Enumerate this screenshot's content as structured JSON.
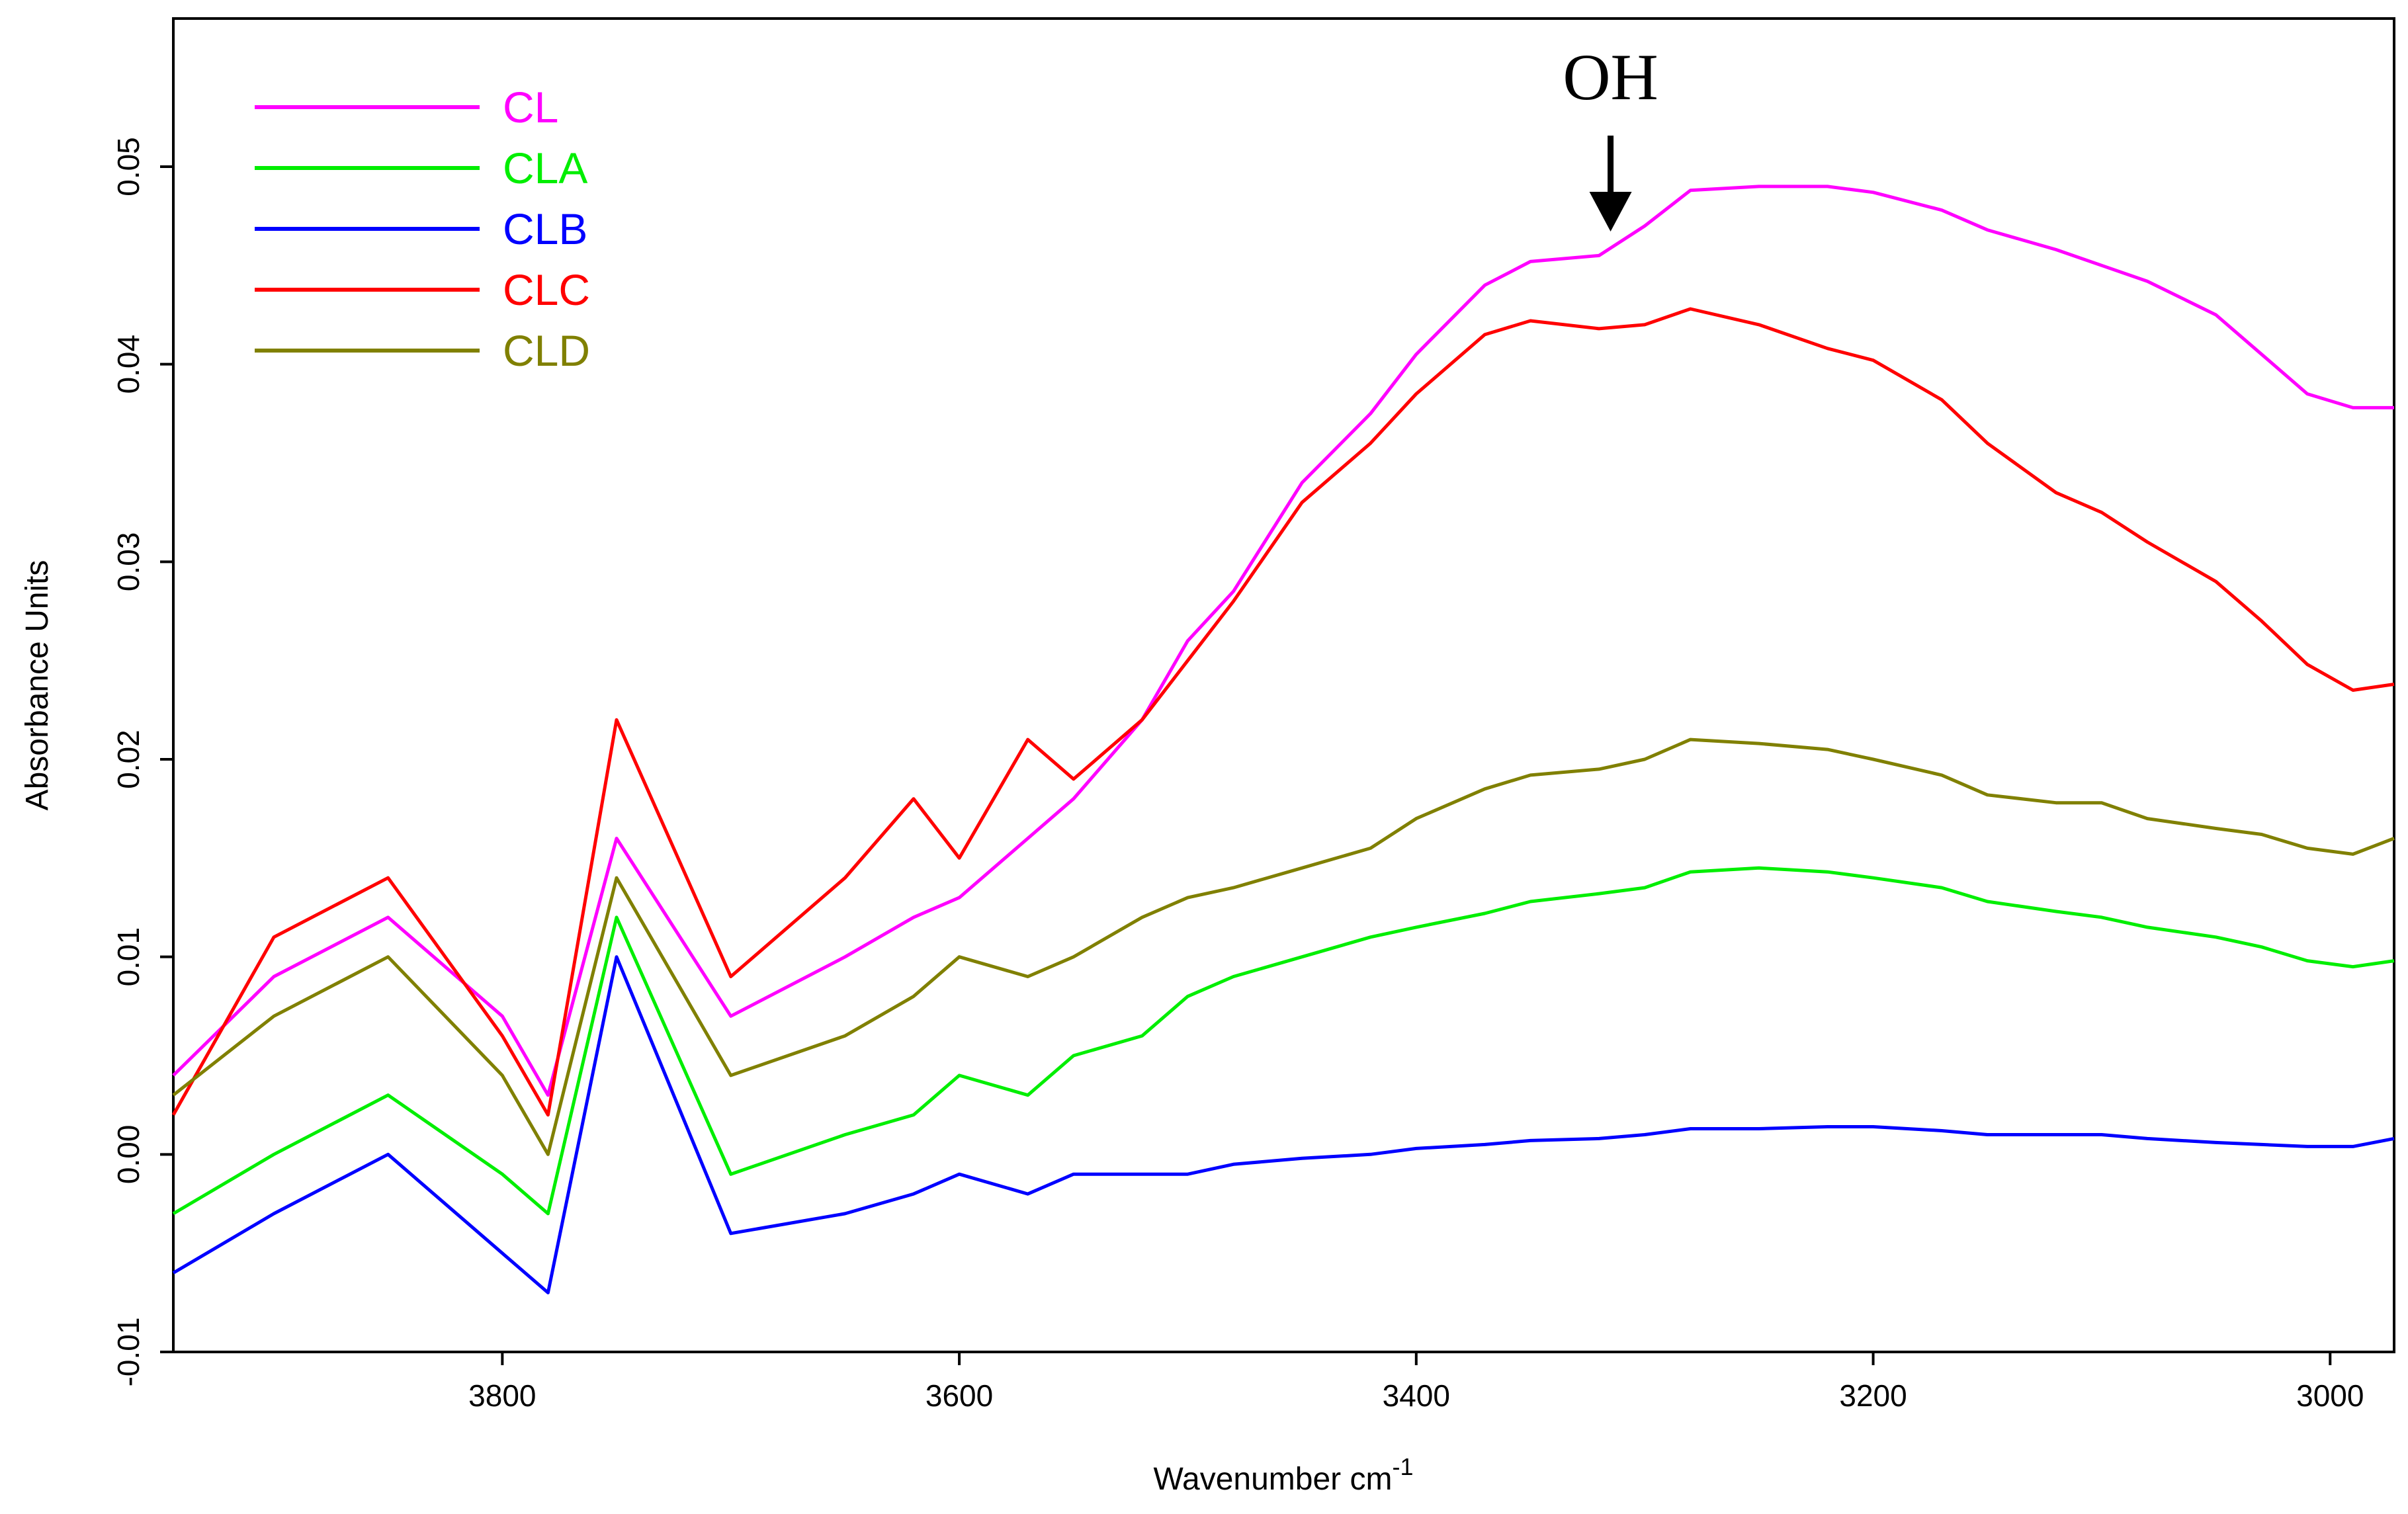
{
  "chart_data": {
    "type": "line",
    "title": "",
    "xlabel": "Wavenumber cm",
    "xlabel_superscript": "-1",
    "ylabel": "Absorbance Units",
    "xlim": [
      3944,
      2972
    ],
    "ylim": [
      -0.01,
      0.0575
    ],
    "x_reversed": true,
    "x_ticks": [
      "3800",
      "3600",
      "3400",
      "3200",
      "3000"
    ],
    "x_tick_values": [
      3800,
      3600,
      3400,
      3200,
      3000
    ],
    "y_ticks": [
      "-0.01",
      "0.00",
      "0.01",
      "0.02",
      "0.03",
      "0.04",
      "0.05"
    ],
    "y_tick_values": [
      -0.01,
      0.0,
      0.01,
      0.02,
      0.03,
      0.04,
      0.05
    ],
    "grid": false,
    "legend_position": "top-left",
    "annotations": [
      {
        "text": "OH",
        "x": 3330,
        "arrow": true
      }
    ],
    "series": [
      {
        "name": "CL",
        "color": "#ff00ff",
        "points": [
          [
            3944,
            0.004
          ],
          [
            3900,
            0.009
          ],
          [
            3850,
            0.012
          ],
          [
            3800,
            0.007
          ],
          [
            3780,
            0.003
          ],
          [
            3750,
            0.016
          ],
          [
            3700,
            0.007
          ],
          [
            3650,
            0.01
          ],
          [
            3620,
            0.012
          ],
          [
            3600,
            0.013
          ],
          [
            3570,
            0.016
          ],
          [
            3550,
            0.018
          ],
          [
            3520,
            0.022
          ],
          [
            3500,
            0.026
          ],
          [
            3480,
            0.0285
          ],
          [
            3450,
            0.034
          ],
          [
            3420,
            0.0375
          ],
          [
            3400,
            0.0405
          ],
          [
            3370,
            0.044
          ],
          [
            3350,
            0.0452
          ],
          [
            3320,
            0.0455
          ],
          [
            3300,
            0.047
          ],
          [
            3280,
            0.0488
          ],
          [
            3250,
            0.049
          ],
          [
            3220,
            0.049
          ],
          [
            3200,
            0.0487
          ],
          [
            3170,
            0.0478
          ],
          [
            3150,
            0.0468
          ],
          [
            3120,
            0.0458
          ],
          [
            3100,
            0.045
          ],
          [
            3080,
            0.0442
          ],
          [
            3050,
            0.0425
          ],
          [
            3030,
            0.0405
          ],
          [
            3010,
            0.0385
          ],
          [
            2990,
            0.0378
          ],
          [
            2972,
            0.0378
          ]
        ]
      },
      {
        "name": "CLA",
        "color": "#00ee00",
        "points": [
          [
            3944,
            -0.003
          ],
          [
            3900,
            0.0
          ],
          [
            3850,
            0.003
          ],
          [
            3800,
            -0.001
          ],
          [
            3780,
            -0.003
          ],
          [
            3750,
            0.012
          ],
          [
            3700,
            -0.001
          ],
          [
            3650,
            0.001
          ],
          [
            3620,
            0.002
          ],
          [
            3600,
            0.004
          ],
          [
            3570,
            0.003
          ],
          [
            3550,
            0.005
          ],
          [
            3520,
            0.006
          ],
          [
            3500,
            0.008
          ],
          [
            3480,
            0.009
          ],
          [
            3450,
            0.01
          ],
          [
            3420,
            0.011
          ],
          [
            3400,
            0.0115
          ],
          [
            3370,
            0.0122
          ],
          [
            3350,
            0.0128
          ],
          [
            3320,
            0.0132
          ],
          [
            3300,
            0.0135
          ],
          [
            3280,
            0.0143
          ],
          [
            3250,
            0.0145
          ],
          [
            3220,
            0.0143
          ],
          [
            3200,
            0.014
          ],
          [
            3170,
            0.0135
          ],
          [
            3150,
            0.0128
          ],
          [
            3120,
            0.0123
          ],
          [
            3100,
            0.012
          ],
          [
            3080,
            0.0115
          ],
          [
            3050,
            0.011
          ],
          [
            3030,
            0.0105
          ],
          [
            3010,
            0.0098
          ],
          [
            2990,
            0.0095
          ],
          [
            2972,
            0.0098
          ]
        ]
      },
      {
        "name": "CLB",
        "color": "#0000ff",
        "points": [
          [
            3944,
            -0.006
          ],
          [
            3900,
            -0.003
          ],
          [
            3850,
            0.0
          ],
          [
            3800,
            -0.005
          ],
          [
            3780,
            -0.007
          ],
          [
            3750,
            0.01
          ],
          [
            3700,
            -0.004
          ],
          [
            3650,
            -0.003
          ],
          [
            3620,
            -0.002
          ],
          [
            3600,
            -0.001
          ],
          [
            3570,
            -0.002
          ],
          [
            3550,
            -0.001
          ],
          [
            3520,
            -0.001
          ],
          [
            3500,
            -0.001
          ],
          [
            3480,
            -0.0005
          ],
          [
            3450,
            -0.0002
          ],
          [
            3420,
            0.0
          ],
          [
            3400,
            0.0003
          ],
          [
            3370,
            0.0005
          ],
          [
            3350,
            0.0007
          ],
          [
            3320,
            0.0008
          ],
          [
            3300,
            0.001
          ],
          [
            3280,
            0.0013
          ],
          [
            3250,
            0.0013
          ],
          [
            3220,
            0.0014
          ],
          [
            3200,
            0.0014
          ],
          [
            3170,
            0.0012
          ],
          [
            3150,
            0.001
          ],
          [
            3120,
            0.001
          ],
          [
            3100,
            0.001
          ],
          [
            3080,
            0.0008
          ],
          [
            3050,
            0.0006
          ],
          [
            3030,
            0.0005
          ],
          [
            3010,
            0.0004
          ],
          [
            2990,
            0.0004
          ],
          [
            2972,
            0.0008
          ]
        ]
      },
      {
        "name": "CLC",
        "color": "#ff0000",
        "points": [
          [
            3944,
            0.002
          ],
          [
            3900,
            0.011
          ],
          [
            3850,
            0.014
          ],
          [
            3800,
            0.006
          ],
          [
            3780,
            0.002
          ],
          [
            3750,
            0.022
          ],
          [
            3700,
            0.009
          ],
          [
            3650,
            0.014
          ],
          [
            3620,
            0.018
          ],
          [
            3600,
            0.015
          ],
          [
            3570,
            0.021
          ],
          [
            3550,
            0.019
          ],
          [
            3520,
            0.022
          ],
          [
            3500,
            0.025
          ],
          [
            3480,
            0.028
          ],
          [
            3450,
            0.033
          ],
          [
            3420,
            0.036
          ],
          [
            3400,
            0.0385
          ],
          [
            3370,
            0.0415
          ],
          [
            3350,
            0.0422
          ],
          [
            3320,
            0.0418
          ],
          [
            3300,
            0.042
          ],
          [
            3280,
            0.0428
          ],
          [
            3250,
            0.042
          ],
          [
            3220,
            0.0408
          ],
          [
            3200,
            0.0402
          ],
          [
            3170,
            0.0382
          ],
          [
            3150,
            0.036
          ],
          [
            3120,
            0.0335
          ],
          [
            3100,
            0.0325
          ],
          [
            3080,
            0.031
          ],
          [
            3050,
            0.029
          ],
          [
            3030,
            0.027
          ],
          [
            3010,
            0.0248
          ],
          [
            2990,
            0.0235
          ],
          [
            2972,
            0.0238
          ]
        ]
      },
      {
        "name": "CLD",
        "color": "#808000",
        "points": [
          [
            3944,
            0.003
          ],
          [
            3900,
            0.007
          ],
          [
            3850,
            0.01
          ],
          [
            3800,
            0.004
          ],
          [
            3780,
            0.0
          ],
          [
            3750,
            0.014
          ],
          [
            3700,
            0.004
          ],
          [
            3650,
            0.006
          ],
          [
            3620,
            0.008
          ],
          [
            3600,
            0.01
          ],
          [
            3570,
            0.009
          ],
          [
            3550,
            0.01
          ],
          [
            3520,
            0.012
          ],
          [
            3500,
            0.013
          ],
          [
            3480,
            0.0135
          ],
          [
            3450,
            0.0145
          ],
          [
            3420,
            0.0155
          ],
          [
            3400,
            0.017
          ],
          [
            3370,
            0.0185
          ],
          [
            3350,
            0.0192
          ],
          [
            3320,
            0.0195
          ],
          [
            3300,
            0.02
          ],
          [
            3280,
            0.021
          ],
          [
            3250,
            0.0208
          ],
          [
            3220,
            0.0205
          ],
          [
            3200,
            0.02
          ],
          [
            3170,
            0.0192
          ],
          [
            3150,
            0.0182
          ],
          [
            3120,
            0.0178
          ],
          [
            3100,
            0.0178
          ],
          [
            3080,
            0.017
          ],
          [
            3050,
            0.0165
          ],
          [
            3030,
            0.0162
          ],
          [
            3010,
            0.0155
          ],
          [
            2990,
            0.0152
          ],
          [
            2972,
            0.016
          ]
        ]
      }
    ]
  }
}
